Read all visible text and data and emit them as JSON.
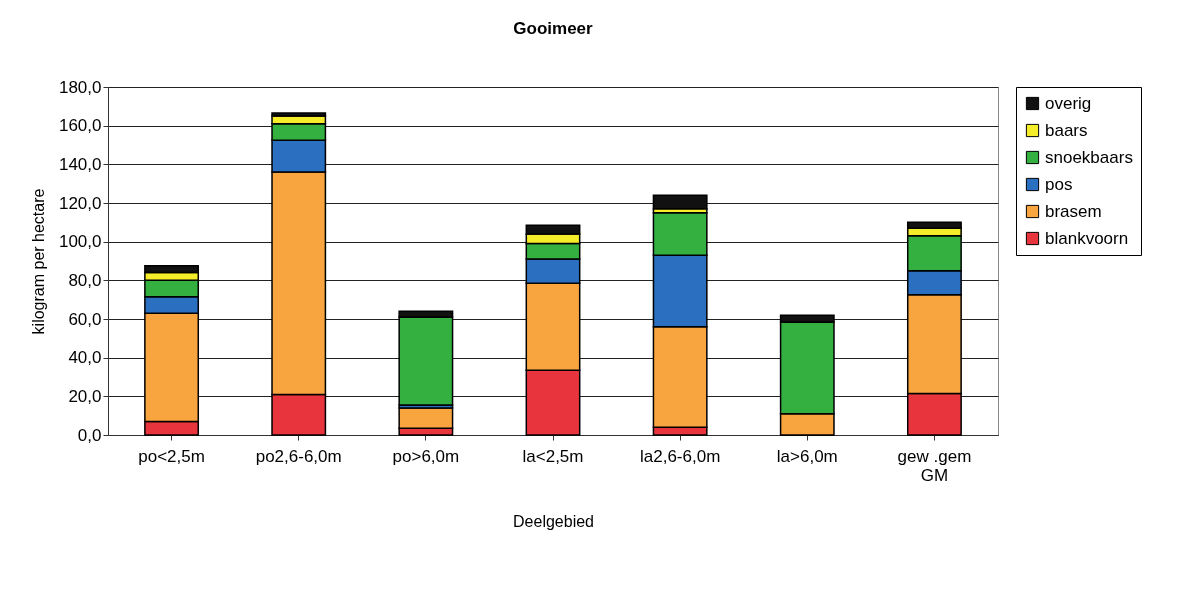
{
  "chart_data": {
    "type": "bar",
    "title": "Gooimeer",
    "xlabel": "Deelgebied",
    "ylabel": "kilogram per hectare",
    "stacked": true,
    "legend": "right",
    "grid": "y",
    "categories": [
      "po<2,5m",
      "po2,6-6,0m",
      "po>6,0m",
      "la<2,5m",
      "la2,6-6,0m",
      "la>6,0m",
      "gew .gem GM"
    ],
    "ylim": [
      0,
      180
    ],
    "yticks": [
      {
        "value": 0,
        "label": "0,0"
      },
      {
        "value": 20,
        "label": "20,0"
      },
      {
        "value": 40,
        "label": "40,0"
      },
      {
        "value": 60,
        "label": "60,0"
      },
      {
        "value": 80,
        "label": "80,0"
      },
      {
        "value": 100,
        "label": "100,0"
      },
      {
        "value": 120,
        "label": "120,0"
      },
      {
        "value": 140,
        "label": "140,0"
      },
      {
        "value": 160,
        "label": "160,0"
      },
      {
        "value": 180,
        "label": "180,0"
      }
    ],
    "series": [
      {
        "name": "blankvoorn",
        "color": "#e8343c",
        "values": [
          7,
          21,
          3.5,
          33.5,
          4,
          0,
          21.5
        ]
      },
      {
        "name": "brasem",
        "color": "#f8a540",
        "values": [
          56,
          115,
          10.5,
          45,
          52,
          11,
          51
        ]
      },
      {
        "name": "pos",
        "color": "#2a6fc0",
        "values": [
          8.5,
          16.5,
          1.5,
          12.5,
          37,
          null,
          12.5
        ]
      },
      {
        "name": "snoekbaars",
        "color": "#33b040",
        "values": [
          8.5,
          8.5,
          45.5,
          8,
          22,
          47.5,
          18
        ]
      },
      {
        "name": "baars",
        "color": "#f5ec2a",
        "values": [
          4,
          4,
          0,
          5,
          2,
          0,
          4
        ]
      },
      {
        "name": "overig",
        "color": "#111111",
        "values": [
          3.5,
          1.5,
          3,
          4.5,
          7,
          3.5,
          3
        ]
      }
    ]
  }
}
